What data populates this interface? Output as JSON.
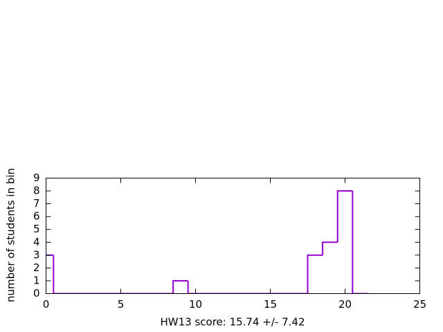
{
  "chart_data": {
    "type": "histogram",
    "x_label": "HW13 score: 15.74 +/- 7.42",
    "y_label": "number of students in bin",
    "bins": [
      -0.5,
      0.5,
      1.5,
      2.5,
      3.5,
      4.5,
      5.5,
      6.5,
      7.5,
      8.5,
      9.5,
      10.5,
      11.5,
      12.5,
      13.5,
      14.5,
      15.5,
      16.5,
      17.5,
      18.5,
      19.5,
      20.5,
      21.5
    ],
    "values": [
      3,
      0,
      0,
      0,
      0,
      0,
      0,
      0,
      0,
      1,
      0,
      0,
      0,
      0,
      0,
      0,
      0,
      0,
      3,
      4,
      8,
      0
    ],
    "color": "#9400d3",
    "xlim": [
      0,
      25
    ],
    "xticks": [
      0,
      5,
      10,
      15,
      20,
      25
    ],
    "ylim": [
      0,
      9
    ],
    "yticks": [
      0,
      1,
      2,
      3,
      4,
      5,
      6,
      7,
      8,
      9
    ]
  }
}
